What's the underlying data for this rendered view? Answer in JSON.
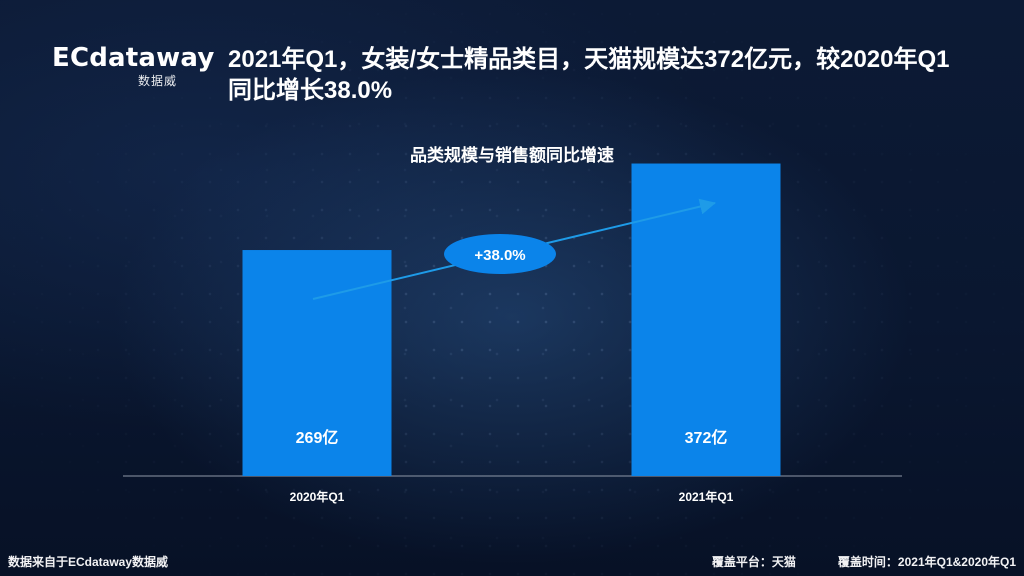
{
  "brand": {
    "logo_text": "ECdataway",
    "logo_subtext": "数据威"
  },
  "header": {
    "title": "2021年Q1，女装/女士精品类目，天猫规模达372亿元，较2020年Q1同比增长38.0%"
  },
  "chart_data": {
    "type": "bar",
    "title": "品类规模与销售额同比增速",
    "categories": [
      "2020年Q1",
      "2021年Q1"
    ],
    "values": [
      269,
      372
    ],
    "unit": "亿",
    "data_labels": [
      "269亿",
      "372亿"
    ],
    "growth_label": "+38.0%",
    "ylim": [
      0,
      400
    ],
    "grid": false
  },
  "footer": {
    "source": "数据来自于ECdataway数据威",
    "platform": "覆盖平台：天猫",
    "time_range": "覆盖时间：2021年Q1&2020年Q1"
  },
  "colors": {
    "bar": "#0b84ea",
    "arrow": "#1e9be8",
    "growth_bubble": "#0b84ea",
    "text": "#ffffff",
    "axis": "#8f98a8",
    "background_top": "#0c1a35",
    "background_bottom": "#071126"
  }
}
